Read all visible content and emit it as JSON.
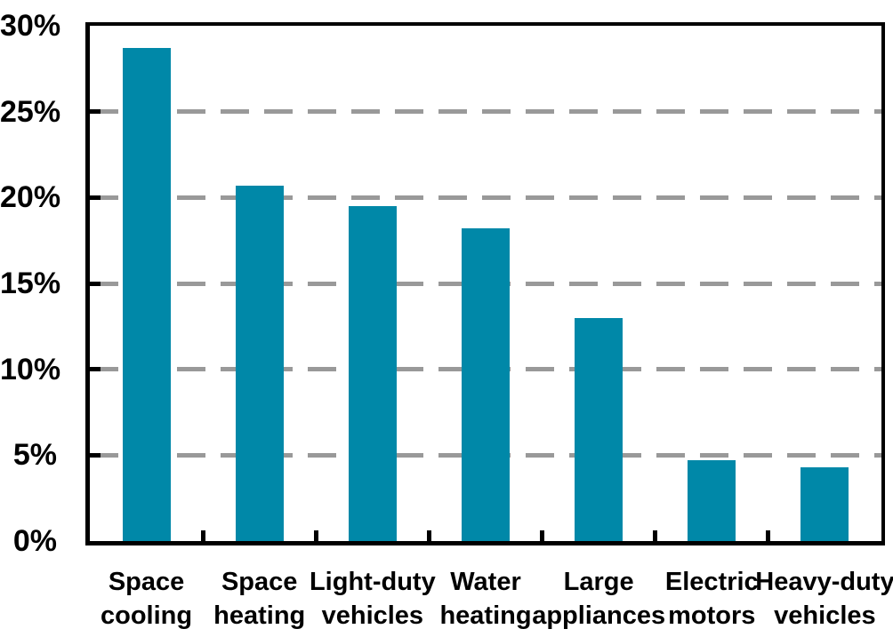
{
  "chart_data": {
    "type": "bar",
    "title": "",
    "xlabel": "",
    "ylabel": "",
    "categories": [
      "Space cooling",
      "Space heating",
      "Light-duty vehicles",
      "Water heating",
      "Large appliances",
      "Electric motors",
      "Heavy-duty vehicles"
    ],
    "category_lines": [
      [
        "Space",
        "cooling"
      ],
      [
        "Space",
        "heating"
      ],
      [
        "Light-duty",
        "vehicles"
      ],
      [
        "Water",
        "heating"
      ],
      [
        "Large",
        "appliances"
      ],
      [
        "Electric",
        "motors"
      ],
      [
        "Heavy-duty",
        "vehicles"
      ]
    ],
    "values": [
      28.7,
      20.7,
      19.5,
      18.2,
      13.0,
      4.7,
      4.3
    ],
    "unit": "%",
    "ylim": [
      0,
      30
    ],
    "ytick_step": 5,
    "ytick_labels": [
      "0%",
      "5%",
      "10%",
      "15%",
      "20%",
      "25%",
      "30%"
    ],
    "grid": "horizontal-dashed",
    "legend": "none",
    "colors": {
      "bar": "#0088A8",
      "gridline": "#999999",
      "axis": "#000000",
      "text": "#000000",
      "background": "#FFFFFF"
    }
  }
}
